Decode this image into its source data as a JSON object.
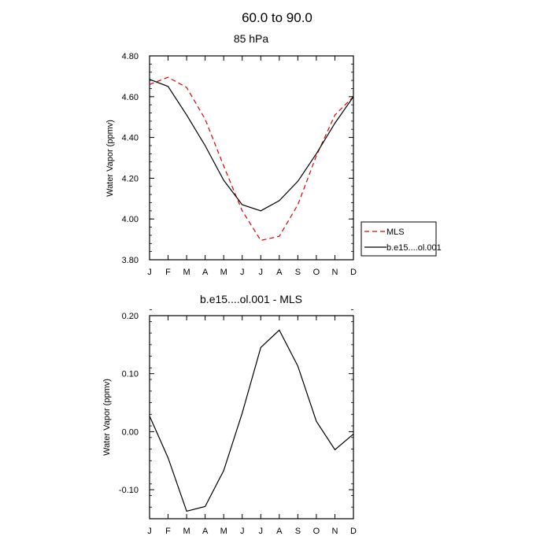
{
  "figure_title": "60.0 to  90.0",
  "chart_data": [
    {
      "type": "line",
      "title": "85 hPa",
      "xlabel": "",
      "ylabel": "Water Vapor (ppmv)",
      "categories": [
        "J",
        "F",
        "M",
        "A",
        "M",
        "J",
        "J",
        "A",
        "S",
        "O",
        "N",
        "D"
      ],
      "ylim": [
        3.8,
        4.8
      ],
      "yticks": [
        "3.80",
        "4.00",
        "4.20",
        "4.40",
        "4.60",
        "4.80"
      ],
      "series": [
        {
          "name": "MLS",
          "color": "#e00000",
          "dash": "dashed",
          "values": [
            4.66,
            4.695,
            4.645,
            4.49,
            4.26,
            4.04,
            3.895,
            3.915,
            4.07,
            4.31,
            4.51,
            4.6
          ]
        },
        {
          "name": "b.e15....ol.001",
          "color": "#000000",
          "dash": "solid",
          "values": [
            4.685,
            4.65,
            4.51,
            4.36,
            4.19,
            4.07,
            4.04,
            4.09,
            4.185,
            4.32,
            4.47,
            4.6
          ]
        }
      ],
      "legend": "right"
    },
    {
      "type": "line",
      "title": "b.e15....ol.001 - MLS",
      "xlabel": "",
      "ylabel": "Water Vapor (ppmv)",
      "categories": [
        "J",
        "F",
        "M",
        "A",
        "M",
        "J",
        "J",
        "A",
        "S",
        "O",
        "N",
        "D"
      ],
      "ylim": [
        -0.15,
        0.2
      ],
      "yticks": [
        "-0.10",
        "0.00",
        "0.10",
        "0.20"
      ],
      "series": [
        {
          "color": "#000000",
          "dash": "solid",
          "values": [
            0.027,
            -0.045,
            -0.137,
            -0.129,
            -0.067,
            0.032,
            0.145,
            0.175,
            0.113,
            0.018,
            -0.031,
            -0.004
          ]
        }
      ]
    }
  ]
}
